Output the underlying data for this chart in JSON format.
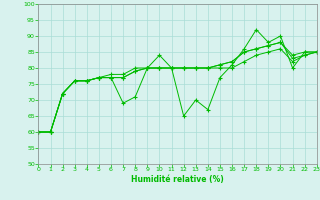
{
  "xlabel": "Humidité relative (%)",
  "background_color": "#d8f2ee",
  "grid_color": "#aaddd6",
  "line_color": "#00bb00",
  "ylim": [
    50,
    100
  ],
  "xlim": [
    0,
    23
  ],
  "yticks": [
    50,
    55,
    60,
    65,
    70,
    75,
    80,
    85,
    90,
    95,
    100
  ],
  "xticks": [
    0,
    1,
    2,
    3,
    4,
    5,
    6,
    7,
    8,
    9,
    10,
    11,
    12,
    13,
    14,
    15,
    16,
    17,
    18,
    19,
    20,
    21,
    22,
    23
  ],
  "series": [
    [
      60,
      60,
      72,
      76,
      76,
      77,
      77,
      69,
      71,
      80,
      84,
      80,
      65,
      70,
      67,
      77,
      81,
      86,
      92,
      88,
      90,
      80,
      85,
      85
    ],
    [
      60,
      60,
      72,
      76,
      76,
      77,
      78,
      78,
      80,
      80,
      80,
      80,
      80,
      80,
      80,
      81,
      82,
      85,
      86,
      87,
      88,
      84,
      85,
      85
    ],
    [
      60,
      60,
      72,
      76,
      76,
      77,
      77,
      77,
      79,
      80,
      80,
      80,
      80,
      80,
      80,
      81,
      82,
      85,
      86,
      87,
      88,
      83,
      84,
      85
    ],
    [
      60,
      60,
      72,
      76,
      76,
      77,
      77,
      77,
      79,
      80,
      80,
      80,
      80,
      80,
      80,
      80,
      80,
      82,
      84,
      85,
      86,
      82,
      84,
      85
    ]
  ]
}
